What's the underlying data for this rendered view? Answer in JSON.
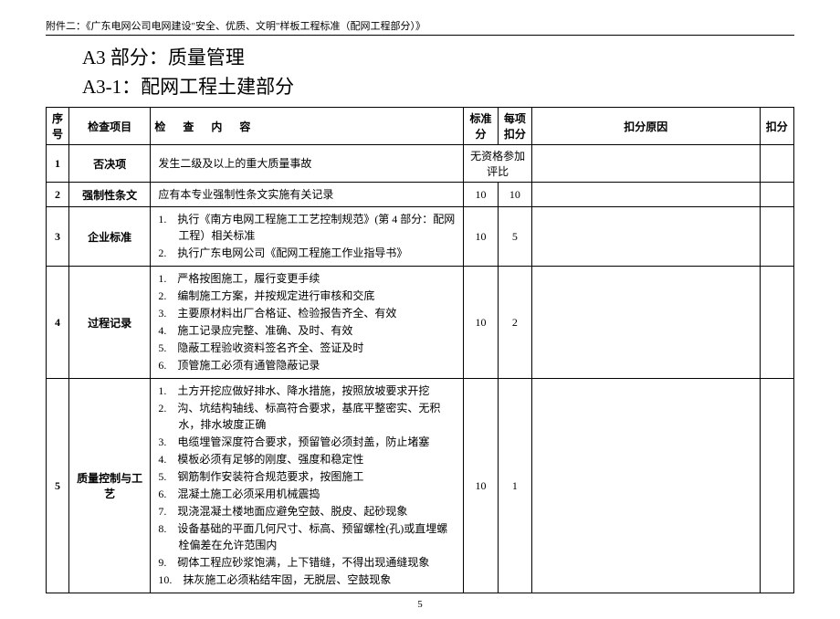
{
  "header_note": "附件二：《广东电网公司电网建设\"安全、优质、文明\"样板工程标准（配网工程部分）》",
  "title_main": "A3 部分：质量管理",
  "title_sub": "A3-1：配网工程土建部分",
  "page_number": "5",
  "columns": {
    "seq": "序号",
    "item": "检查项目",
    "content": "检 查 内 容",
    "score": "标准分",
    "deduct": "每项扣分",
    "reason": "扣分原因",
    "deducted": "扣分"
  },
  "rows": {
    "r1": {
      "seq": "1",
      "item": "否决项",
      "content": "发生二级及以上的重大质量事故",
      "merged": "无资格参加评比"
    },
    "r2": {
      "seq": "2",
      "item": "强制性条文",
      "content": "应有本专业强制性条文实施有关记录",
      "score": "10",
      "deduct": "10"
    },
    "r3": {
      "seq": "3",
      "item": "企业标准",
      "li1": "1.　执行《南方电网工程施工工艺控制规范》(第 4 部分：配网工程）相关标准",
      "li2": "2.　执行广东电网公司《配网工程施工作业指导书》",
      "score": "10",
      "deduct": "5"
    },
    "r4": {
      "seq": "4",
      "item": "过程记录",
      "li1": "1.　严格按图施工，履行变更手续",
      "li2": "2.　编制施工方案，并按规定进行审核和交底",
      "li3": "3.　主要原材料出厂合格证、检验报告齐全、有效",
      "li4": "4.　施工记录应完整、准确、及时、有效",
      "li5": "5.　隐蔽工程验收资料签名齐全、签证及时",
      "li6": "6.　顶管施工必须有通管隐蔽记录",
      "score": "10",
      "deduct": "2"
    },
    "r5": {
      "seq": "5",
      "item": "质量控制与工艺",
      "li1": "1.　土方开挖应做好排水、降水措施，按照放坡要求开挖",
      "li2": "2.　沟、坑结构轴线、标高符合要求，基底平整密实、无积水，排水坡度正确",
      "li3": "3.　电缆埋管深度符合要求，预留管必须封盖，防止堵塞",
      "li4": "4.　模板必须有足够的刚度、强度和稳定性",
      "li5": "5.　钢筋制作安装符合规范要求，按图施工",
      "li6": "6.　混凝土施工必须采用机械震捣",
      "li7": "7.　现浇混凝土楼地面应避免空鼓、脱皮、起砂现象",
      "li8": "8.　设备基础的平面几何尺寸、标高、预留螺栓(孔)或直埋螺栓偏差在允许范围内",
      "li9": "9.　砌体工程应砂浆饱满，上下错缝，不得出现通缝现象",
      "li10": "10.　抹灰施工必须粘结牢固，无脱层、空鼓现象",
      "score": "10",
      "deduct": "1"
    }
  }
}
